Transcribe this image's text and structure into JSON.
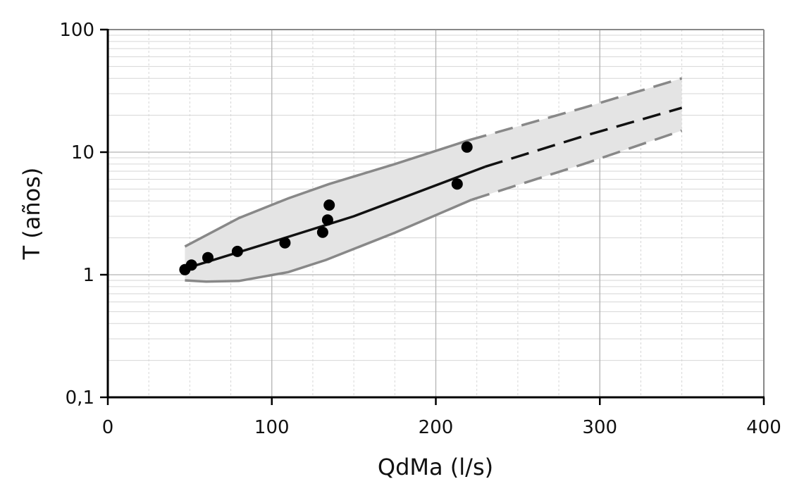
{
  "chart_data": {
    "type": "scatter",
    "title": "",
    "xlabel": "QdMa (l/s)",
    "ylabel": "T (años)",
    "x_scale": "linear",
    "y_scale": "log",
    "xlim": [
      0,
      400
    ],
    "ylim": [
      0.1,
      100
    ],
    "x_ticks": [
      0,
      100,
      200,
      300,
      400
    ],
    "x_tick_labels": [
      "0",
      "100",
      "200",
      "300",
      "400"
    ],
    "x_minor_ticks": [
      25,
      50,
      75,
      125,
      150,
      175,
      225,
      250,
      275,
      325,
      350,
      375
    ],
    "y_ticks": [
      0.1,
      1,
      10,
      100
    ],
    "y_tick_labels": [
      "0,1",
      "1",
      "10",
      "100"
    ],
    "grid": true,
    "legend": "none",
    "colors": {
      "band_fill": "#e4e4e4",
      "band_line": "#888888",
      "fit_line": "#111111",
      "points": "#000000",
      "grid_major": "#b3b3b3",
      "grid_minor": "#d6d6d6"
    },
    "points": [
      {
        "x": 47,
        "y": 1.1
      },
      {
        "x": 51,
        "y": 1.2
      },
      {
        "x": 61,
        "y": 1.38
      },
      {
        "x": 79,
        "y": 1.55
      },
      {
        "x": 108,
        "y": 1.82
      },
      {
        "x": 131,
        "y": 2.22
      },
      {
        "x": 134,
        "y": 2.8
      },
      {
        "x": 135,
        "y": 3.7
      },
      {
        "x": 213,
        "y": 5.5
      },
      {
        "x": 219,
        "y": 11
      }
    ],
    "fit_solid": [
      {
        "x": 47,
        "y": 1.12
      },
      {
        "x": 100,
        "y": 1.85
      },
      {
        "x": 150,
        "y": 3.0
      },
      {
        "x": 230,
        "y": 7.6
      }
    ],
    "fit_dashed": [
      {
        "x": 230,
        "y": 7.6
      },
      {
        "x": 290,
        "y": 13.5
      },
      {
        "x": 350,
        "y": 23
      }
    ],
    "upper_solid": [
      {
        "x": 47,
        "y": 1.7
      },
      {
        "x": 80,
        "y": 2.9
      },
      {
        "x": 110,
        "y": 4.2
      },
      {
        "x": 135,
        "y": 5.5
      },
      {
        "x": 175,
        "y": 8.0
      },
      {
        "x": 220,
        "y": 12.5
      }
    ],
    "upper_dashed": [
      {
        "x": 220,
        "y": 12.5
      },
      {
        "x": 290,
        "y": 23
      },
      {
        "x": 350,
        "y": 40
      }
    ],
    "lower_solid": [
      {
        "x": 47,
        "y": 0.9
      },
      {
        "x": 60,
        "y": 0.88
      },
      {
        "x": 80,
        "y": 0.89
      },
      {
        "x": 110,
        "y": 1.05
      },
      {
        "x": 133,
        "y": 1.32
      },
      {
        "x": 175,
        "y": 2.2
      },
      {
        "x": 222,
        "y": 4.1
      }
    ],
    "lower_dashed": [
      {
        "x": 222,
        "y": 4.1
      },
      {
        "x": 290,
        "y": 8.0
      },
      {
        "x": 350,
        "y": 15
      }
    ]
  }
}
